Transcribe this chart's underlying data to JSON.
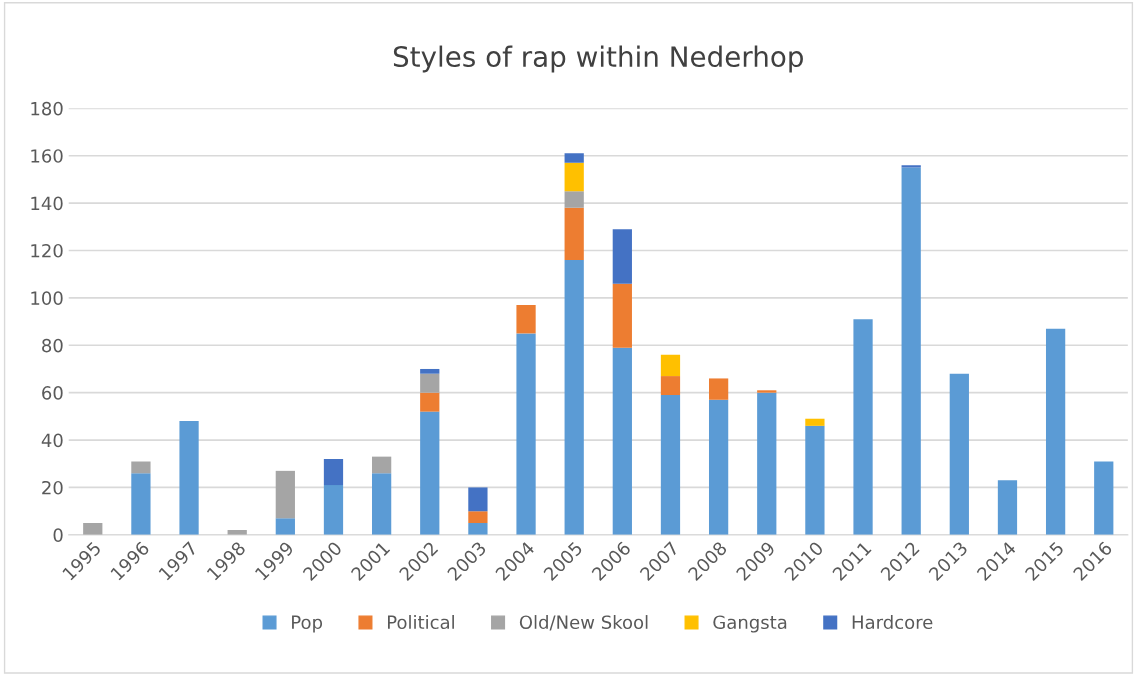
{
  "chart_data": {
    "type": "bar",
    "title": "Styles of rap within Nederhop",
    "stacked": true,
    "categories": [
      "1995",
      "1996",
      "1997",
      "1998",
      "1999",
      "2000",
      "2001",
      "2002",
      "2003",
      "2004",
      "2005",
      "2006",
      "2007",
      "2008",
      "2009",
      "2010",
      "2011",
      "2012",
      "2013",
      "2014",
      "2015",
      "2016"
    ],
    "series": [
      {
        "name": "Pop",
        "color": "#5b9bd5",
        "values": [
          0,
          26,
          48,
          0,
          7,
          21,
          26,
          52,
          5,
          85,
          116,
          79,
          59,
          57,
          60,
          46,
          91,
          155,
          68,
          23,
          87,
          31
        ]
      },
      {
        "name": "Political",
        "color": "#ed7d31",
        "values": [
          0,
          0,
          0,
          0,
          0,
          0,
          0,
          8,
          5,
          12,
          22,
          27,
          8,
          9,
          1,
          0,
          0,
          0,
          0,
          0,
          0,
          0
        ]
      },
      {
        "name": "Old/New Skool",
        "color": "#a5a5a5",
        "values": [
          5,
          5,
          0,
          2,
          20,
          0,
          7,
          8,
          0,
          0,
          7,
          0,
          0,
          0,
          0,
          0,
          0,
          0,
          0,
          0,
          0,
          0
        ]
      },
      {
        "name": "Gangsta",
        "color": "#ffc000",
        "values": [
          0,
          0,
          0,
          0,
          0,
          0,
          0,
          0,
          0,
          0,
          12,
          0,
          9,
          0,
          0,
          3,
          0,
          0,
          0,
          0,
          0,
          0
        ]
      },
      {
        "name": "Hardcore",
        "color": "#4472c4",
        "values": [
          0,
          0,
          0,
          0,
          0,
          11,
          0,
          2,
          10,
          0,
          4,
          23,
          0,
          0,
          0,
          0,
          0,
          1,
          0,
          0,
          0,
          0
        ]
      }
    ],
    "ylim": [
      0,
      180
    ],
    "yticks": [
      0,
      20,
      40,
      60,
      80,
      100,
      120,
      140,
      160,
      180
    ],
    "grid": "y",
    "legend": "bottom"
  }
}
